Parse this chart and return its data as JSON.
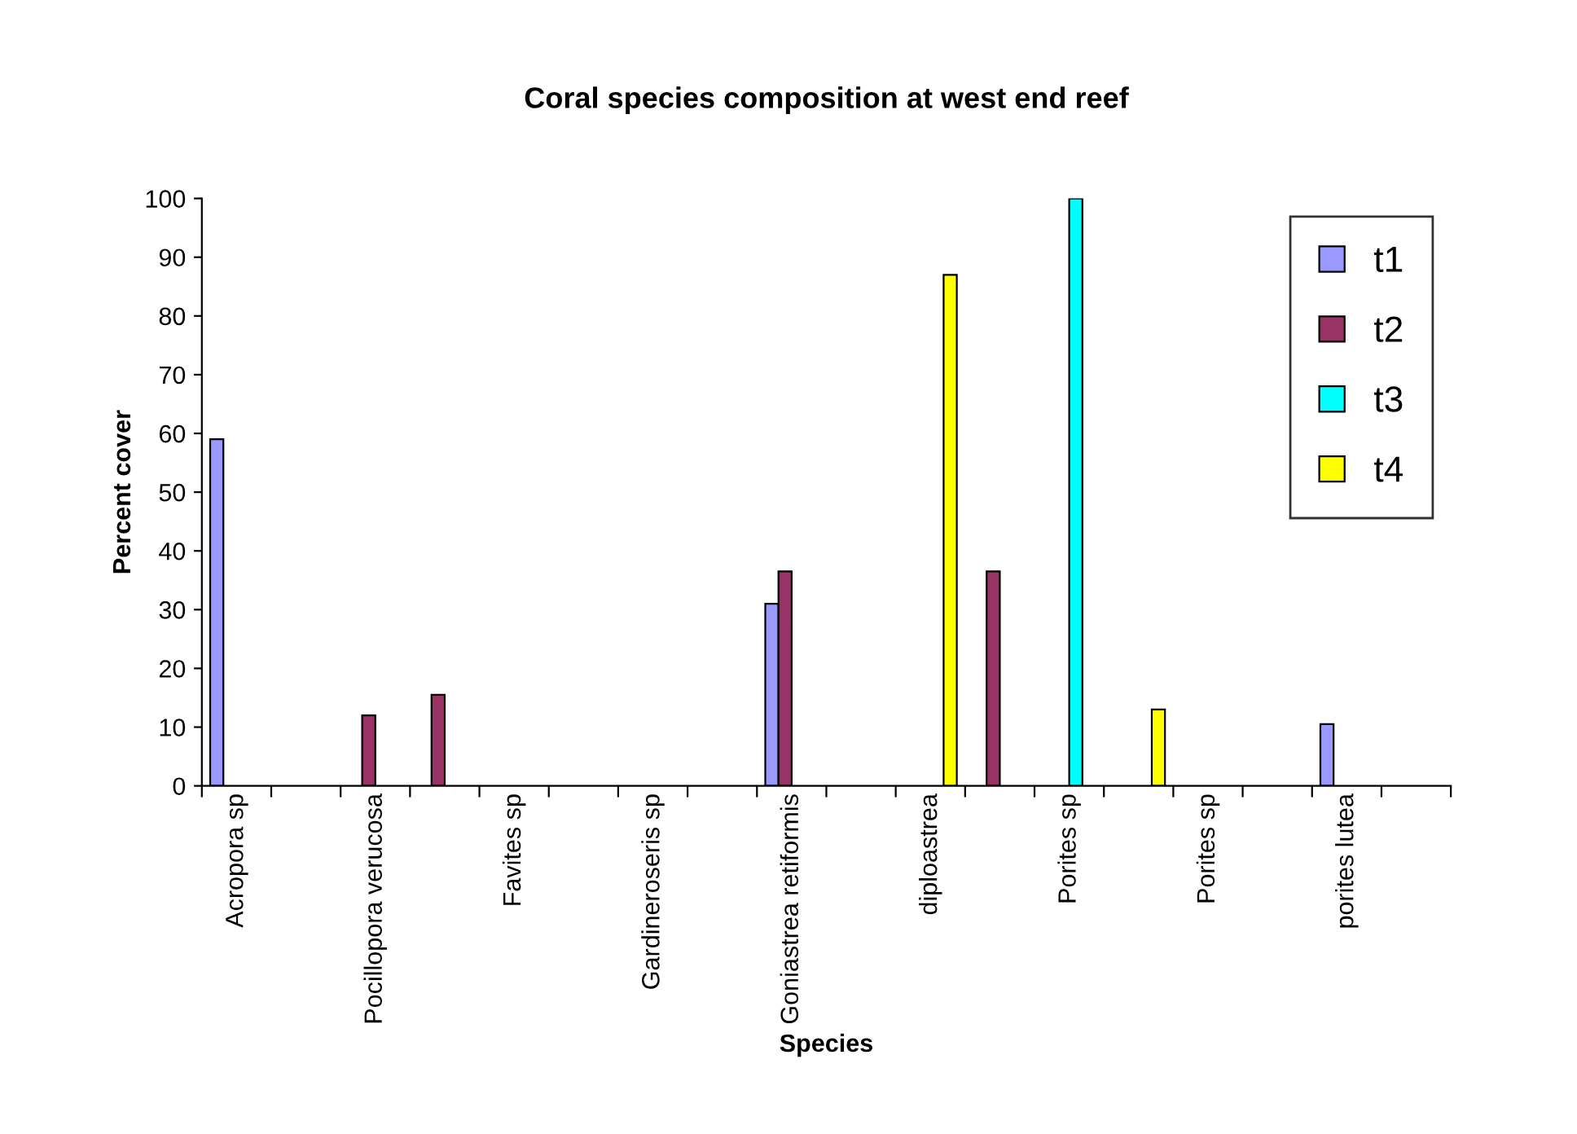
{
  "chart_data": {
    "type": "bar",
    "title": "Coral species composition at west end reef",
    "xlabel": "Species",
    "ylabel": "Percent cover",
    "categories": [
      "Acropora sp",
      null,
      "Pocillopora verucosa",
      null,
      "Favites sp",
      null,
      "Gardineroseris sp",
      null,
      "Goniastrea retiformis",
      null,
      "diploastrea",
      null,
      "Porites sp",
      null,
      "Porites sp",
      null,
      "porites lutea",
      null
    ],
    "series": [
      {
        "name": "t1",
        "color": "#9999ff",
        "values": [
          59,
          null,
          null,
          null,
          null,
          null,
          null,
          null,
          31,
          null,
          null,
          null,
          null,
          null,
          null,
          null,
          10.5,
          null
        ]
      },
      {
        "name": "t2",
        "color": "#993366",
        "values": [
          null,
          null,
          12,
          15.5,
          null,
          null,
          null,
          null,
          36.5,
          null,
          null,
          36.5,
          null,
          null,
          null,
          null,
          null,
          null
        ]
      },
      {
        "name": "t3",
        "color": "#00ffff",
        "values": [
          null,
          null,
          null,
          null,
          null,
          null,
          null,
          null,
          null,
          null,
          null,
          null,
          100,
          null,
          null,
          null,
          null,
          null
        ]
      },
      {
        "name": "t4",
        "color": "#ffff00",
        "values": [
          null,
          null,
          null,
          null,
          null,
          null,
          null,
          null,
          null,
          null,
          87,
          null,
          null,
          13,
          null,
          null,
          null,
          null
        ]
      }
    ],
    "ylim": [
      0,
      100
    ],
    "yticks": [
      0,
      10,
      20,
      30,
      40,
      50,
      60,
      70,
      80,
      90,
      100
    ],
    "grid": false,
    "legend": "top right"
  }
}
